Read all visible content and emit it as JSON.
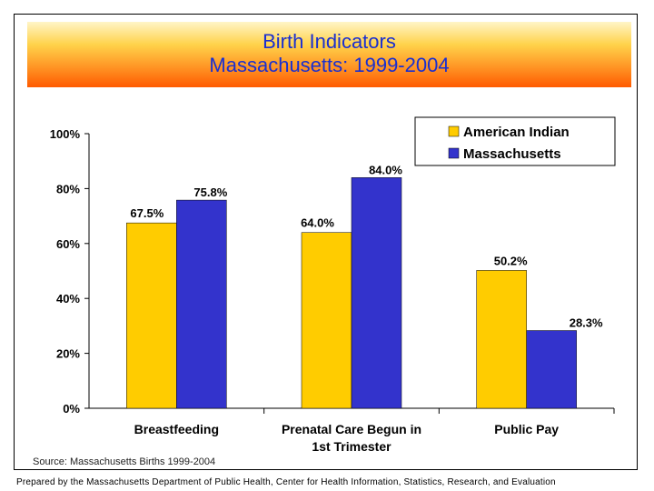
{
  "title": {
    "line1": "Birth Indicators",
    "line2": "Massachusetts: 1999-2004"
  },
  "source": "Source: Massachusetts Births 1999-2004",
  "footer": "Prepared by the Massachusetts Department of Public Health, Center for Health Information, Statistics, Research, and Evaluation",
  "chart_data": {
    "type": "bar",
    "categories": [
      "Breastfeeding",
      "Prenatal Care Begun in 1st Trimester",
      "Public Pay"
    ],
    "category_lines": [
      [
        "Breastfeeding"
      ],
      [
        "Prenatal Care Begun in",
        "1st Trimester"
      ],
      [
        "Public Pay"
      ]
    ],
    "series": [
      {
        "name": "American Indian",
        "values": [
          67.5,
          64.0,
          50.2
        ],
        "labels": [
          "67.5%",
          "64.0%",
          "50.2%"
        ],
        "color": "#ffcc00"
      },
      {
        "name": "Massachusetts",
        "values": [
          75.8,
          84.0,
          28.3
        ],
        "labels": [
          "75.8%",
          "84.0%",
          "28.3%"
        ],
        "color": "#3333cc"
      }
    ],
    "ylim": [
      0,
      100
    ],
    "yticks": [
      0,
      20,
      40,
      60,
      80,
      100
    ],
    "ytick_labels": [
      "0%",
      "20%",
      "40%",
      "60%",
      "80%",
      "100%"
    ],
    "grid": false,
    "legend": "top-right"
  }
}
